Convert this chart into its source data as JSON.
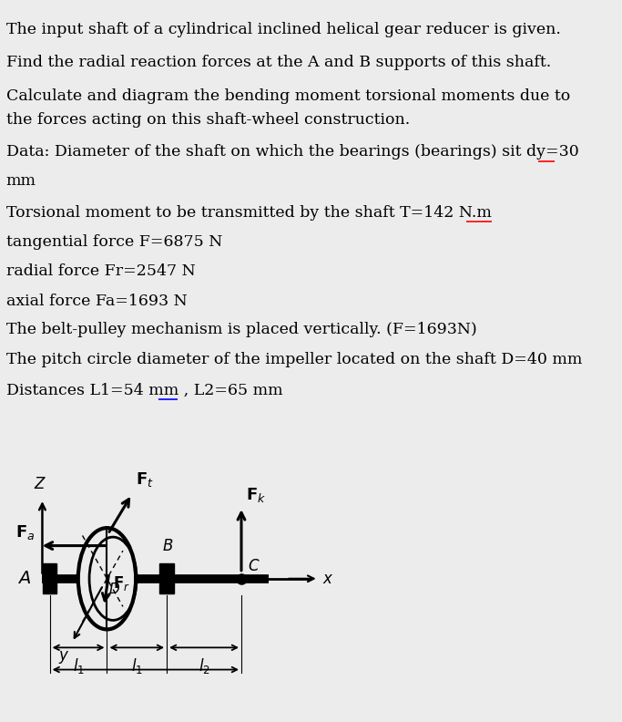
{
  "text_lines": [
    "The input shaft of a cylindrical inclined helical gear reducer is given.",
    "Find the radial reaction forces at the A and B supports of this shaft.",
    "Calculate and diagram the bending moment torsional moments due to",
    "the forces acting on this shaft-wheel construction.",
    "Data: Diameter of the shaft on which the bearings (bearings) sit dy=30",
    "mm",
    "Torsional moment to be transmitted by the shaft T=142 N.m",
    "tangential force F=6875 N",
    "radial force Fr=2547 N",
    "axial force Fa=1693 N",
    "The belt-pulley mechanism is placed vertically. (F=1693N)",
    "The pitch circle diameter of the impeller located on the shaft D=40 mm",
    "Distances L1=54 mm , L2=65 mm"
  ],
  "bg_color": "#ececec",
  "text_color": "#000000",
  "font_size": 12.5
}
